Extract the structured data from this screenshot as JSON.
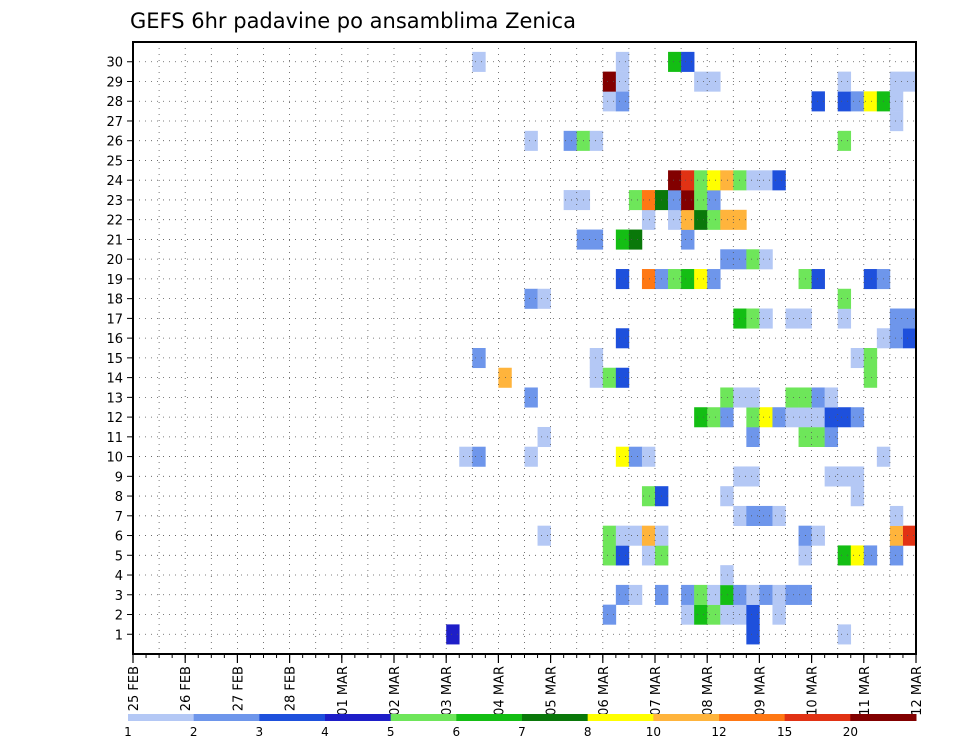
{
  "chart_data": {
    "type": "heatmap",
    "title": "GEFS 6hr padavine po ansamblima Zenica",
    "x_ticks": [
      "25 FEB",
      "26 FEB",
      "27 FEB",
      "28 FEB",
      "01 MAR",
      "02 MAR",
      "03 MAR",
      "04 MAR",
      "05 MAR",
      "06 MAR",
      "07 MAR",
      "08 MAR",
      "09 MAR",
      "10 MAR",
      "11 MAR",
      "12 MAR"
    ],
    "y_ticks": [
      "1",
      "2",
      "3",
      "4",
      "5",
      "6",
      "7",
      "8",
      "9",
      "10",
      "11",
      "12",
      "13",
      "14",
      "15",
      "16",
      "17",
      "18",
      "19",
      "20",
      "21",
      "22",
      "23",
      "24",
      "25",
      "26",
      "27",
      "28",
      "29",
      "30"
    ],
    "legend": {
      "labels": [
        "1",
        "2",
        "3",
        "4",
        "5",
        "6",
        "7",
        "8",
        "10",
        "12",
        "15",
        "20"
      ],
      "colors": [
        "#b4c8f5",
        "#6e96eb",
        "#1e50dc",
        "#1e1ec8",
        "#6ee65a",
        "#14be14",
        "#0a780a",
        "#ffff00",
        "#ffb43c",
        "#ff7814",
        "#e13214",
        "#820000"
      ]
    },
    "cells": [
      {
        "m": 1,
        "s": [
          [
            25,
            4
          ],
          [
            48,
            3
          ],
          [
            55,
            1
          ]
        ]
      },
      {
        "m": 2,
        "s": [
          [
            37,
            2
          ],
          [
            43,
            1
          ],
          [
            44,
            6
          ],
          [
            45,
            5
          ],
          [
            46,
            1
          ],
          [
            47,
            1
          ],
          [
            48,
            3
          ],
          [
            50,
            1
          ]
        ]
      },
      {
        "m": 3,
        "s": [
          [
            38,
            2
          ],
          [
            39,
            1
          ],
          [
            41,
            2
          ],
          [
            43,
            2
          ],
          [
            44,
            5
          ],
          [
            45,
            1
          ],
          [
            46,
            6
          ],
          [
            47,
            2
          ],
          [
            48,
            1
          ],
          [
            49,
            2
          ],
          [
            50,
            1
          ],
          [
            51,
            2
          ],
          [
            52,
            2
          ]
        ]
      },
      {
        "m": 4,
        "s": [
          [
            46,
            1
          ]
        ]
      },
      {
        "m": 5,
        "s": [
          [
            37,
            5
          ],
          [
            38,
            3
          ],
          [
            40,
            1
          ],
          [
            41,
            5
          ],
          [
            52,
            1
          ],
          [
            55,
            6
          ],
          [
            56,
            8
          ],
          [
            57,
            2
          ],
          [
            59,
            2
          ]
        ]
      },
      {
        "m": 6,
        "s": [
          [
            32,
            1
          ],
          [
            37,
            5
          ],
          [
            38,
            1
          ],
          [
            39,
            1
          ],
          [
            40,
            9
          ],
          [
            41,
            1
          ],
          [
            52,
            2
          ],
          [
            53,
            1
          ],
          [
            59,
            9
          ],
          [
            60,
            11
          ]
        ]
      },
      {
        "m": 7,
        "s": [
          [
            47,
            1
          ],
          [
            48,
            2
          ],
          [
            49,
            2
          ],
          [
            50,
            1
          ],
          [
            59,
            1
          ]
        ]
      },
      {
        "m": 8,
        "s": [
          [
            40,
            5
          ],
          [
            41,
            3
          ],
          [
            46,
            1
          ],
          [
            56,
            1
          ]
        ]
      },
      {
        "m": 9,
        "s": [
          [
            47,
            1
          ],
          [
            48,
            1
          ],
          [
            54,
            1
          ],
          [
            55,
            1
          ],
          [
            56,
            1
          ]
        ]
      },
      {
        "m": 10,
        "s": [
          [
            26,
            1
          ],
          [
            27,
            2
          ],
          [
            31,
            1
          ],
          [
            38,
            8
          ],
          [
            39,
            2
          ],
          [
            40,
            1
          ],
          [
            58,
            1
          ]
        ]
      },
      {
        "m": 11,
        "s": [
          [
            32,
            1
          ],
          [
            48,
            2
          ],
          [
            52,
            5
          ],
          [
            53,
            5
          ],
          [
            54,
            2
          ]
        ]
      },
      {
        "m": 12,
        "s": [
          [
            44,
            6
          ],
          [
            45,
            5
          ],
          [
            46,
            2
          ],
          [
            48,
            5
          ],
          [
            49,
            8
          ],
          [
            50,
            2
          ],
          [
            51,
            1
          ],
          [
            52,
            1
          ],
          [
            53,
            1
          ],
          [
            54,
            3
          ],
          [
            55,
            3
          ],
          [
            56,
            2
          ]
        ]
      },
      {
        "m": 13,
        "s": [
          [
            31,
            2
          ],
          [
            46,
            5
          ],
          [
            47,
            1
          ],
          [
            48,
            1
          ],
          [
            51,
            5
          ],
          [
            52,
            5
          ],
          [
            53,
            2
          ],
          [
            54,
            1
          ]
        ]
      },
      {
        "m": 14,
        "s": [
          [
            29,
            9
          ],
          [
            36,
            1
          ],
          [
            37,
            5
          ],
          [
            38,
            3
          ],
          [
            57,
            5
          ]
        ]
      },
      {
        "m": 15,
        "s": [
          [
            27,
            2
          ],
          [
            36,
            1
          ],
          [
            56,
            1
          ],
          [
            57,
            5
          ]
        ]
      },
      {
        "m": 16,
        "s": [
          [
            38,
            3
          ],
          [
            58,
            1
          ],
          [
            59,
            2
          ],
          [
            60,
            3
          ]
        ]
      },
      {
        "m": 17,
        "s": [
          [
            47,
            6
          ],
          [
            48,
            5
          ],
          [
            49,
            1
          ],
          [
            51,
            1
          ],
          [
            52,
            1
          ],
          [
            55,
            1
          ],
          [
            59,
            2
          ],
          [
            60,
            2
          ]
        ]
      },
      {
        "m": 18,
        "s": [
          [
            31,
            2
          ],
          [
            32,
            1
          ],
          [
            55,
            5
          ]
        ]
      },
      {
        "m": 19,
        "s": [
          [
            38,
            3
          ],
          [
            40,
            10
          ],
          [
            41,
            2
          ],
          [
            42,
            5
          ],
          [
            43,
            6
          ],
          [
            44,
            8
          ],
          [
            45,
            2
          ],
          [
            52,
            5
          ],
          [
            53,
            3
          ],
          [
            57,
            3
          ],
          [
            58,
            2
          ]
        ]
      },
      {
        "m": 20,
        "s": [
          [
            46,
            2
          ],
          [
            47,
            2
          ],
          [
            48,
            5
          ],
          [
            49,
            1
          ]
        ]
      },
      {
        "m": 21,
        "s": [
          [
            35,
            2
          ],
          [
            36,
            2
          ],
          [
            38,
            6
          ],
          [
            39,
            7
          ],
          [
            43,
            2
          ]
        ]
      },
      {
        "m": 22,
        "s": [
          [
            40,
            1
          ],
          [
            42,
            1
          ],
          [
            43,
            9
          ],
          [
            44,
            7
          ],
          [
            45,
            5
          ],
          [
            46,
            9
          ],
          [
            47,
            9
          ]
        ]
      },
      {
        "m": 23,
        "s": [
          [
            34,
            1
          ],
          [
            35,
            1
          ],
          [
            39,
            5
          ],
          [
            40,
            10
          ],
          [
            41,
            7
          ],
          [
            42,
            2
          ],
          [
            43,
            12
          ],
          [
            44,
            5
          ],
          [
            45,
            2
          ]
        ]
      },
      {
        "m": 24,
        "s": [
          [
            42,
            12
          ],
          [
            43,
            11
          ],
          [
            44,
            5
          ],
          [
            45,
            8
          ],
          [
            46,
            9
          ],
          [
            47,
            5
          ],
          [
            48,
            1
          ],
          [
            49,
            1
          ],
          [
            50,
            3
          ]
        ]
      },
      {
        "m": 26,
        "s": [
          [
            31,
            1
          ],
          [
            34,
            2
          ],
          [
            35,
            5
          ],
          [
            36,
            1
          ],
          [
            55,
            5
          ]
        ]
      },
      {
        "m": 27,
        "s": [
          [
            59,
            1
          ]
        ]
      },
      {
        "m": 28,
        "s": [
          [
            37,
            1
          ],
          [
            38,
            2
          ],
          [
            53,
            3
          ],
          [
            55,
            3
          ],
          [
            56,
            2
          ],
          [
            57,
            8
          ],
          [
            58,
            6
          ],
          [
            59,
            1
          ]
        ]
      },
      {
        "m": 29,
        "s": [
          [
            37,
            12
          ],
          [
            38,
            1
          ],
          [
            44,
            1
          ],
          [
            45,
            1
          ],
          [
            55,
            1
          ],
          [
            59,
            1
          ],
          [
            60,
            1
          ]
        ]
      },
      {
        "m": 30,
        "s": [
          [
            27,
            1
          ],
          [
            38,
            1
          ],
          [
            42,
            6
          ],
          [
            43,
            3
          ]
        ]
      }
    ]
  }
}
